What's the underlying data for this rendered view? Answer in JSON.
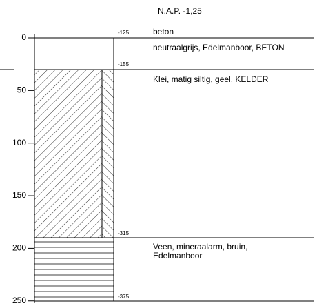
{
  "header": {
    "title": "N.A.P.  -1,25"
  },
  "axis": {
    "ticks": [
      0,
      50,
      100,
      150,
      200,
      250
    ]
  },
  "layers": [
    {
      "level": "-125",
      "name": "beton",
      "description": [
        "neutraalgrijs, Edelmanboor, BETON"
      ]
    },
    {
      "level": "-155",
      "description": [
        "Klei, matig siltig, geel, KELDER"
      ]
    },
    {
      "level": "-315",
      "description": [
        "Veen, mineraalarm, bruin,",
        "Edelmanboor"
      ]
    },
    {
      "level": "-375"
    }
  ]
}
